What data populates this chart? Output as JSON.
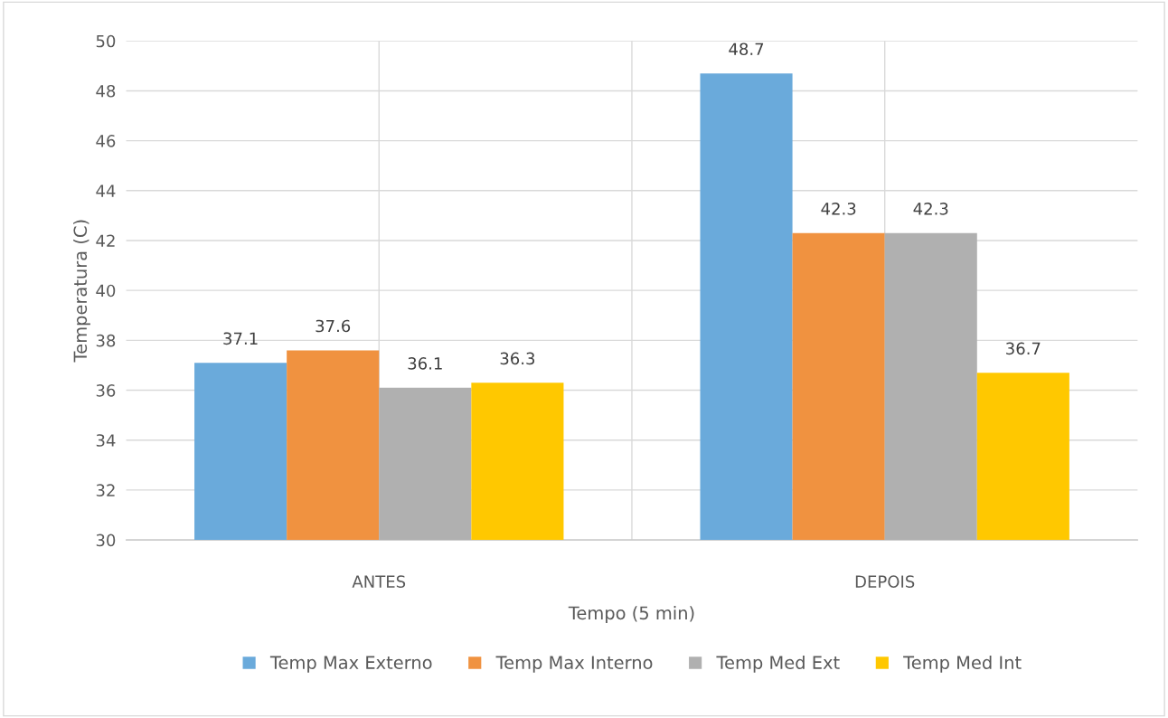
{
  "chart_data": {
    "type": "bar",
    "xlabel": "Tempo (5 min)",
    "ylabel": "Temperatura (C)",
    "categories": [
      "ANTES",
      "DEPOIS"
    ],
    "series": [
      {
        "name": "Temp Max Externo",
        "color": "#6aaadb",
        "values": [
          37.1,
          48.7
        ]
      },
      {
        "name": "Temp Max Interno",
        "color": "#f09240",
        "values": [
          37.6,
          42.3
        ]
      },
      {
        "name": "Temp Med Ext",
        "color": "#b0b0b0",
        "values": [
          36.1,
          42.3
        ]
      },
      {
        "name": "Temp Med Int",
        "color": "#ffc800",
        "values": [
          36.3,
          36.7
        ]
      }
    ],
    "ylim": [
      30,
      50
    ],
    "yticks": [
      30,
      32,
      34,
      36,
      38,
      40,
      42,
      44,
      46,
      48,
      50
    ],
    "grid": true,
    "legend": "bottom",
    "data_labels": true
  }
}
